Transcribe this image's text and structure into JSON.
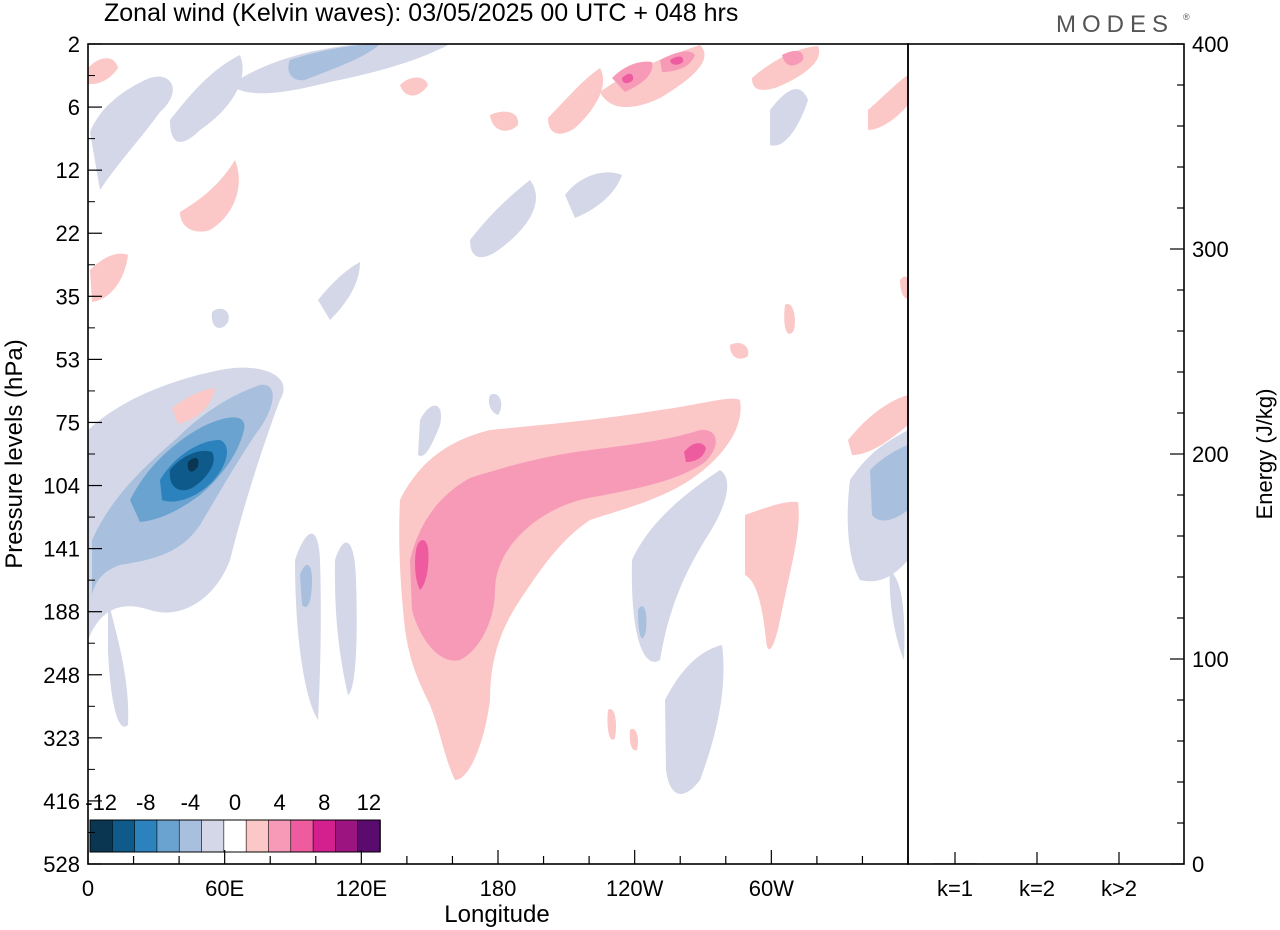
{
  "brand": {
    "name": "MODES",
    "mark": "®"
  },
  "chart_data": [
    {
      "type": "heatmap",
      "title": "Zonal wind (Kelvin waves):  03/05/2025  00 UTC  + 048 hrs",
      "xlabel": "Longitude",
      "ylabel": "Pressure levels (hPa)",
      "x_ticks": [
        "0",
        "60E",
        "120E",
        "180",
        "120W",
        "60W"
      ],
      "x_tick_degrees": [
        0,
        60,
        120,
        180,
        240,
        300
      ],
      "xlim": [
        0,
        360
      ],
      "y_ticks": [
        2,
        6,
        12,
        22,
        35,
        53,
        75,
        104,
        141,
        188,
        248,
        323,
        416,
        528
      ],
      "y_tick_labels": [
        "2",
        "6",
        "12",
        "22",
        "35",
        "53",
        "75",
        "104",
        "141",
        "188",
        "248",
        "323",
        "416",
        "528"
      ],
      "colorbar": {
        "labels": [
          "-12",
          "-8",
          "-4",
          "0",
          "4",
          "8",
          "12"
        ],
        "colors": [
          "#0b3652",
          "#0e5a8a",
          "#2b82bd",
          "#6aa3cf",
          "#a8c0de",
          "#d3d7e8",
          "#ffffff",
          "#fbc7c7",
          "#f79ab7",
          "#ee5c9f",
          "#d4208f",
          "#9c147f",
          "#5b0a6e"
        ]
      },
      "features": [
        {
          "sign": "negative",
          "peak": -12,
          "lon_range": [
            20,
            80
          ],
          "p_range": [
            60,
            180
          ],
          "center": {
            "lon": 50,
            "p": 100
          }
        },
        {
          "sign": "positive",
          "peak": 8,
          "lon_range": [
            140,
            280
          ],
          "p_range": [
            75,
            450
          ],
          "center": {
            "lon": 145,
            "p": 150
          }
        },
        {
          "sign": "positive",
          "peak": 8,
          "lon_range": [
            200,
            280
          ],
          "p_range": [
            70,
            110
          ],
          "center": {
            "lon": 266,
            "p": 90
          }
        }
      ]
    },
    {
      "type": "bar",
      "ylabel": "Energy (J/kg)",
      "categories": [
        "k=1",
        "k=2",
        "k>2"
      ],
      "values": [
        0.3,
        0,
        0.2
      ],
      "ylim": [
        0,
        400
      ],
      "y_ticks": [
        "0",
        "100",
        "200",
        "300",
        "400"
      ]
    }
  ]
}
